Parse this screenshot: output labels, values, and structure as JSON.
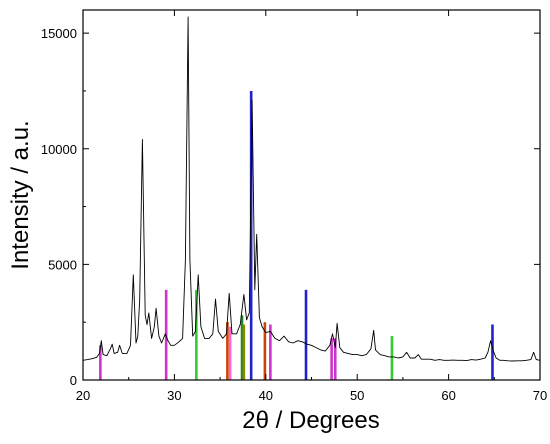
{
  "chart_data": {
    "type": "line",
    "title": "",
    "xlabel": "2θ / Degrees",
    "ylabel": "Intensity / a.u.",
    "xlim": [
      20,
      70
    ],
    "ylim": [
      0,
      16000
    ],
    "x_ticks": [
      20,
      30,
      40,
      50,
      60,
      70
    ],
    "y_ticks": [
      0,
      5000,
      10000,
      15000
    ],
    "grid": false,
    "legend": "none",
    "series": [
      {
        "color": "#000000",
        "points": [
          [
            20.0,
            850
          ],
          [
            20.5,
            880
          ],
          [
            21.0,
            920
          ],
          [
            21.5,
            980
          ],
          [
            21.8,
            1150
          ],
          [
            22.0,
            1700
          ],
          [
            22.2,
            1100
          ],
          [
            22.6,
            1050
          ],
          [
            23.0,
            1350
          ],
          [
            23.2,
            1550
          ],
          [
            23.4,
            1150
          ],
          [
            23.8,
            1200
          ],
          [
            24.0,
            1500
          ],
          [
            24.3,
            1150
          ],
          [
            24.8,
            1150
          ],
          [
            25.2,
            1500
          ],
          [
            25.5,
            4550
          ],
          [
            25.8,
            1600
          ],
          [
            26.0,
            1900
          ],
          [
            26.2,
            3500
          ],
          [
            26.5,
            10400
          ],
          [
            26.8,
            2800
          ],
          [
            27.0,
            2400
          ],
          [
            27.2,
            2900
          ],
          [
            27.5,
            1800
          ],
          [
            27.8,
            2300
          ],
          [
            28.0,
            3100
          ],
          [
            28.3,
            1900
          ],
          [
            28.6,
            1600
          ],
          [
            29.0,
            2000
          ],
          [
            29.3,
            1700
          ],
          [
            29.6,
            1500
          ],
          [
            30.0,
            1500
          ],
          [
            30.5,
            1650
          ],
          [
            30.9,
            1800
          ],
          [
            31.2,
            5200
          ],
          [
            31.5,
            15700
          ],
          [
            31.7,
            5200
          ],
          [
            32.0,
            1900
          ],
          [
            32.3,
            2100
          ],
          [
            32.6,
            4550
          ],
          [
            32.9,
            2300
          ],
          [
            33.3,
            1800
          ],
          [
            33.8,
            1800
          ],
          [
            34.2,
            2000
          ],
          [
            34.5,
            3500
          ],
          [
            34.8,
            2100
          ],
          [
            35.3,
            1800
          ],
          [
            35.7,
            2000
          ],
          [
            36.0,
            3750
          ],
          [
            36.3,
            2000
          ],
          [
            36.8,
            2000
          ],
          [
            37.2,
            2400
          ],
          [
            37.6,
            3700
          ],
          [
            37.9,
            2600
          ],
          [
            38.2,
            2900
          ],
          [
            38.5,
            12100
          ],
          [
            38.8,
            3900
          ],
          [
            39.0,
            6300
          ],
          [
            39.3,
            2700
          ],
          [
            39.6,
            2300
          ],
          [
            40.0,
            2050
          ],
          [
            40.5,
            2100
          ],
          [
            41.0,
            1800
          ],
          [
            41.5,
            1700
          ],
          [
            42.0,
            1900
          ],
          [
            42.5,
            1650
          ],
          [
            43.0,
            1600
          ],
          [
            43.5,
            1700
          ],
          [
            44.0,
            1650
          ],
          [
            44.5,
            1550
          ],
          [
            45.0,
            1500
          ],
          [
            45.5,
            1400
          ],
          [
            46.0,
            1300
          ],
          [
            46.5,
            1250
          ],
          [
            47.0,
            1500
          ],
          [
            47.3,
            2000
          ],
          [
            47.6,
            1400
          ],
          [
            47.8,
            2450
          ],
          [
            48.1,
            1400
          ],
          [
            48.5,
            1200
          ],
          [
            49.0,
            1150
          ],
          [
            49.5,
            1100
          ],
          [
            50.0,
            1100
          ],
          [
            50.5,
            1050
          ],
          [
            51.0,
            1100
          ],
          [
            51.5,
            1350
          ],
          [
            51.8,
            2150
          ],
          [
            52.0,
            1300
          ],
          [
            52.5,
            1100
          ],
          [
            53.0,
            1050
          ],
          [
            53.5,
            1000
          ],
          [
            54.0,
            1000
          ],
          [
            54.5,
            950
          ],
          [
            55.0,
            1000
          ],
          [
            55.4,
            1200
          ],
          [
            55.8,
            950
          ],
          [
            56.3,
            950
          ],
          [
            56.7,
            1100
          ],
          [
            57.0,
            900
          ],
          [
            57.5,
            900
          ],
          [
            58.0,
            900
          ],
          [
            58.5,
            850
          ],
          [
            59.0,
            880
          ],
          [
            59.5,
            850
          ],
          [
            60.0,
            850
          ],
          [
            60.5,
            860
          ],
          [
            61.0,
            850
          ],
          [
            61.5,
            850
          ],
          [
            62.0,
            840
          ],
          [
            62.5,
            880
          ],
          [
            63.0,
            860
          ],
          [
            63.5,
            900
          ],
          [
            64.0,
            950
          ],
          [
            64.3,
            1200
          ],
          [
            64.6,
            1700
          ],
          [
            64.9,
            1250
          ],
          [
            65.2,
            950
          ],
          [
            65.6,
            850
          ],
          [
            66.0,
            850
          ],
          [
            66.5,
            830
          ],
          [
            67.0,
            820
          ],
          [
            67.5,
            830
          ],
          [
            68.0,
            830
          ],
          [
            68.5,
            850
          ],
          [
            69.0,
            880
          ],
          [
            69.3,
            1200
          ],
          [
            69.6,
            880
          ],
          [
            70.0,
            850
          ]
        ]
      }
    ],
    "reference_bars": [
      {
        "x": 21.9,
        "height": 1500,
        "color": "#cc33cc"
      },
      {
        "x": 29.1,
        "height": 3900,
        "color": "#cc33cc"
      },
      {
        "x": 32.4,
        "height": 3900,
        "color": "#33cc33"
      },
      {
        "x": 35.8,
        "height": 2500,
        "color": "#cc4400"
      },
      {
        "x": 36.1,
        "height": 2300,
        "color": "#ff66cc"
      },
      {
        "x": 37.4,
        "height": 2800,
        "color": "#228822"
      },
      {
        "x": 37.6,
        "height": 2400,
        "color": "#888800"
      },
      {
        "x": 38.4,
        "height": 12500,
        "color": "#2222cc"
      },
      {
        "x": 39.9,
        "height": 2500,
        "color": "#cc4400"
      },
      {
        "x": 40.5,
        "height": 2400,
        "color": "#cc33cc"
      },
      {
        "x": 44.4,
        "height": 3900,
        "color": "#2222cc"
      },
      {
        "x": 47.2,
        "height": 1800,
        "color": "#cc33cc"
      },
      {
        "x": 47.6,
        "height": 1800,
        "color": "#cc33cc"
      },
      {
        "x": 53.8,
        "height": 1900,
        "color": "#33cc33"
      },
      {
        "x": 64.8,
        "height": 2400,
        "color": "#2222cc"
      }
    ]
  }
}
